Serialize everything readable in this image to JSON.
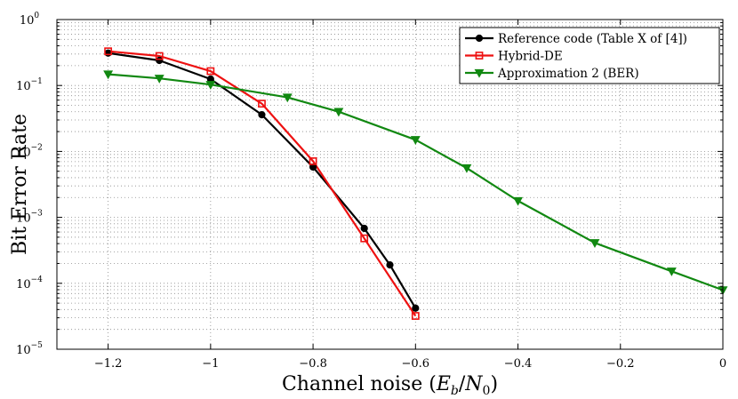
{
  "chart_data": {
    "type": "line",
    "xlabel": "Channel noise (E_b/N_0)",
    "ylabel": "Bit Error Rate",
    "xlim": [
      -1.3,
      0
    ],
    "ylim": [
      1e-05,
      1
    ],
    "yscale": "log",
    "grid": true,
    "legend_position": "top-right",
    "x_ticks": [
      -1.2,
      -1,
      -0.8,
      -0.6,
      -0.4,
      -0.2,
      0
    ],
    "x_tick_labels": [
      "−1.2",
      "−1",
      "−0.8",
      "−0.6",
      "−0.4",
      "−0.2",
      "0"
    ],
    "y_ticks": [
      1e-05,
      0.0001,
      0.001,
      0.01,
      0.1,
      1
    ],
    "y_tick_exponents": [
      "−5",
      "−4",
      "−3",
      "−2",
      "−1",
      "0"
    ],
    "series": [
      {
        "name": "Reference code (Table X of [4])",
        "color": "#000000",
        "marker": "circle",
        "x": [
          -1.2,
          -1.1,
          -1.0,
          -0.9,
          -0.8,
          -0.7,
          -0.65,
          -0.6
        ],
        "y": [
          0.31,
          0.24,
          0.125,
          0.036,
          0.0058,
          0.00068,
          0.00019,
          4.2e-05
        ]
      },
      {
        "name": "Hybrid-DE",
        "color": "#ee1111",
        "marker": "square",
        "x": [
          -1.2,
          -1.1,
          -1.0,
          -0.9,
          -0.8,
          -0.7,
          -0.6
        ],
        "y": [
          0.33,
          0.28,
          0.165,
          0.053,
          0.0071,
          0.00048,
          3.2e-05
        ]
      },
      {
        "name": "Approximation 2 (BER)",
        "color": "#118811",
        "marker": "triangle-down",
        "x": [
          -1.2,
          -1.1,
          -1.0,
          -0.85,
          -0.75,
          -0.6,
          -0.5,
          -0.4,
          -0.25,
          -0.1,
          0.0
        ],
        "y": [
          0.148,
          0.128,
          0.103,
          0.066,
          0.04,
          0.015,
          0.0056,
          0.00178,
          0.00041,
          0.000152,
          7.9e-05
        ]
      }
    ]
  }
}
